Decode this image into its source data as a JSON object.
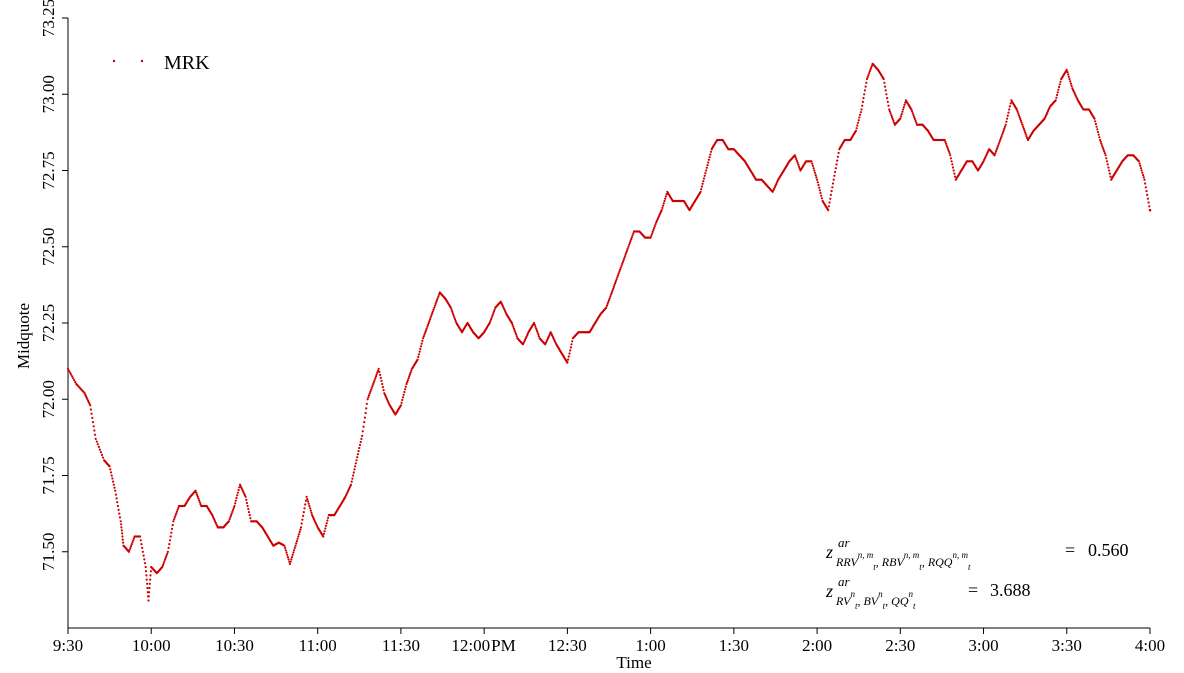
{
  "chart_data": {
    "type": "scatter",
    "xlabel": "Time",
    "ylabel": "Midquote",
    "x_tick_labels": [
      "9:30",
      "10:00",
      "10:30",
      "11:00",
      "11:30",
      "12:00",
      "PM",
      "12:30",
      "1:00",
      "1:30",
      "2:00",
      "2:30",
      "3:00",
      "3:30",
      "4:00"
    ],
    "y_tick_labels": [
      "71.50",
      "71.75",
      "72.00",
      "72.25",
      "72.50",
      "72.75",
      "73.00",
      "73.25"
    ],
    "ylim": [
      71.25,
      73.25
    ],
    "xlim": [
      "9:30",
      "4:00"
    ],
    "grid": false,
    "legend_position": "top-left",
    "marker_color": "#cc0000",
    "series": [
      {
        "name": "MRK",
        "x_unit": "minutes since 9:30",
        "points": [
          [
            0,
            72.1
          ],
          [
            3,
            72.05
          ],
          [
            6,
            72.02
          ],
          [
            8,
            71.98
          ],
          [
            10,
            71.87
          ],
          [
            13,
            71.8
          ],
          [
            15,
            71.78
          ],
          [
            17,
            71.7
          ],
          [
            19,
            71.6
          ],
          [
            20,
            71.52
          ],
          [
            22,
            71.5
          ],
          [
            24,
            71.55
          ],
          [
            26,
            71.55
          ],
          [
            28,
            71.45
          ],
          [
            29,
            71.34
          ],
          [
            30,
            71.45
          ],
          [
            32,
            71.43
          ],
          [
            34,
            71.45
          ],
          [
            36,
            71.5
          ],
          [
            38,
            71.6
          ],
          [
            40,
            71.65
          ],
          [
            42,
            71.65
          ],
          [
            44,
            71.68
          ],
          [
            46,
            71.7
          ],
          [
            48,
            71.65
          ],
          [
            50,
            71.65
          ],
          [
            52,
            71.62
          ],
          [
            54,
            71.58
          ],
          [
            56,
            71.58
          ],
          [
            58,
            71.6
          ],
          [
            60,
            71.65
          ],
          [
            62,
            71.72
          ],
          [
            64,
            71.68
          ],
          [
            66,
            71.6
          ],
          [
            68,
            71.6
          ],
          [
            70,
            71.58
          ],
          [
            72,
            71.55
          ],
          [
            74,
            71.52
          ],
          [
            76,
            71.53
          ],
          [
            78,
            71.52
          ],
          [
            80,
            71.46
          ],
          [
            82,
            71.52
          ],
          [
            84,
            71.58
          ],
          [
            86,
            71.68
          ],
          [
            88,
            71.62
          ],
          [
            90,
            71.58
          ],
          [
            92,
            71.55
          ],
          [
            94,
            71.62
          ],
          [
            96,
            71.62
          ],
          [
            98,
            71.65
          ],
          [
            100,
            71.68
          ],
          [
            102,
            71.72
          ],
          [
            104,
            71.8
          ],
          [
            106,
            71.88
          ],
          [
            108,
            72.0
          ],
          [
            110,
            72.05
          ],
          [
            112,
            72.1
          ],
          [
            114,
            72.02
          ],
          [
            116,
            71.98
          ],
          [
            118,
            71.95
          ],
          [
            120,
            71.98
          ],
          [
            122,
            72.05
          ],
          [
            124,
            72.1
          ],
          [
            126,
            72.13
          ],
          [
            128,
            72.2
          ],
          [
            130,
            72.25
          ],
          [
            132,
            72.3
          ],
          [
            134,
            72.35
          ],
          [
            136,
            72.33
          ],
          [
            138,
            72.3
          ],
          [
            140,
            72.25
          ],
          [
            142,
            72.22
          ],
          [
            144,
            72.25
          ],
          [
            146,
            72.22
          ],
          [
            148,
            72.2
          ],
          [
            150,
            72.22
          ],
          [
            152,
            72.25
          ],
          [
            154,
            72.3
          ],
          [
            156,
            72.32
          ],
          [
            158,
            72.28
          ],
          [
            160,
            72.25
          ],
          [
            162,
            72.2
          ],
          [
            164,
            72.18
          ],
          [
            166,
            72.22
          ],
          [
            168,
            72.25
          ],
          [
            170,
            72.2
          ],
          [
            172,
            72.18
          ],
          [
            174,
            72.22
          ],
          [
            176,
            72.18
          ],
          [
            178,
            72.15
          ],
          [
            180,
            72.12
          ],
          [
            182,
            72.2
          ],
          [
            184,
            72.22
          ],
          [
            186,
            72.22
          ],
          [
            188,
            72.22
          ],
          [
            190,
            72.25
          ],
          [
            192,
            72.28
          ],
          [
            194,
            72.3
          ],
          [
            196,
            72.35
          ],
          [
            198,
            72.4
          ],
          [
            200,
            72.45
          ],
          [
            202,
            72.5
          ],
          [
            204,
            72.55
          ],
          [
            206,
            72.55
          ],
          [
            208,
            72.53
          ],
          [
            210,
            72.53
          ],
          [
            212,
            72.58
          ],
          [
            214,
            72.62
          ],
          [
            216,
            72.68
          ],
          [
            218,
            72.65
          ],
          [
            220,
            72.65
          ],
          [
            222,
            72.65
          ],
          [
            224,
            72.62
          ],
          [
            226,
            72.65
          ],
          [
            228,
            72.68
          ],
          [
            230,
            72.75
          ],
          [
            232,
            72.82
          ],
          [
            234,
            72.85
          ],
          [
            236,
            72.85
          ],
          [
            238,
            72.82
          ],
          [
            240,
            72.82
          ],
          [
            242,
            72.8
          ],
          [
            244,
            72.78
          ],
          [
            246,
            72.75
          ],
          [
            248,
            72.72
          ],
          [
            250,
            72.72
          ],
          [
            252,
            72.7
          ],
          [
            254,
            72.68
          ],
          [
            256,
            72.72
          ],
          [
            258,
            72.75
          ],
          [
            260,
            72.78
          ],
          [
            262,
            72.8
          ],
          [
            264,
            72.75
          ],
          [
            266,
            72.78
          ],
          [
            268,
            72.78
          ],
          [
            270,
            72.72
          ],
          [
            272,
            72.65
          ],
          [
            274,
            72.62
          ],
          [
            276,
            72.72
          ],
          [
            278,
            72.82
          ],
          [
            280,
            72.85
          ],
          [
            282,
            72.85
          ],
          [
            284,
            72.88
          ],
          [
            286,
            72.95
          ],
          [
            288,
            73.05
          ],
          [
            290,
            73.1
          ],
          [
            292,
            73.08
          ],
          [
            294,
            73.05
          ],
          [
            296,
            72.95
          ],
          [
            298,
            72.9
          ],
          [
            300,
            72.92
          ],
          [
            302,
            72.98
          ],
          [
            304,
            72.95
          ],
          [
            306,
            72.9
          ],
          [
            308,
            72.9
          ],
          [
            310,
            72.88
          ],
          [
            312,
            72.85
          ],
          [
            314,
            72.85
          ],
          [
            316,
            72.85
          ],
          [
            318,
            72.8
          ],
          [
            320,
            72.72
          ],
          [
            322,
            72.75
          ],
          [
            324,
            72.78
          ],
          [
            326,
            72.78
          ],
          [
            328,
            72.75
          ],
          [
            330,
            72.78
          ],
          [
            332,
            72.82
          ],
          [
            334,
            72.8
          ],
          [
            336,
            72.85
          ],
          [
            338,
            72.9
          ],
          [
            340,
            72.98
          ],
          [
            342,
            72.95
          ],
          [
            344,
            72.9
          ],
          [
            346,
            72.85
          ],
          [
            348,
            72.88
          ],
          [
            350,
            72.9
          ],
          [
            352,
            72.92
          ],
          [
            354,
            72.96
          ],
          [
            356,
            72.98
          ],
          [
            358,
            73.05
          ],
          [
            360,
            73.08
          ],
          [
            362,
            73.02
          ],
          [
            364,
            72.98
          ],
          [
            366,
            72.95
          ],
          [
            368,
            72.95
          ],
          [
            370,
            72.92
          ],
          [
            372,
            72.85
          ],
          [
            374,
            72.8
          ],
          [
            376,
            72.72
          ],
          [
            378,
            72.75
          ],
          [
            380,
            72.78
          ],
          [
            382,
            72.8
          ],
          [
            384,
            72.8
          ],
          [
            386,
            72.78
          ],
          [
            388,
            72.72
          ],
          [
            390,
            72.62
          ]
        ]
      }
    ],
    "annotations": [
      {
        "id": "stat1",
        "text": "z^{ar}_{RRV_t^{n,m}, RBV_t^{n,m}, RQQ_t^{n,m}} = 0.560",
        "value": "0.560"
      },
      {
        "id": "stat2",
        "text": "z^{ar}_{RV_t^n, BV_t^n, QQ_t^n} = 3.688",
        "value": "3.688"
      }
    ]
  }
}
